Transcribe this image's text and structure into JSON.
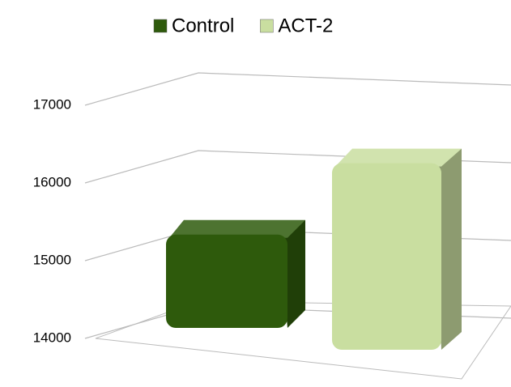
{
  "chart_data": {
    "type": "bar3d",
    "categories": [
      null
    ],
    "series": [
      {
        "name": "Control",
        "color": "#2e5a0c",
        "values": [
          15200
        ]
      },
      {
        "name": "ACT-2",
        "color": "#c9dea0",
        "values": [
          16400
        ]
      }
    ],
    "ylim": [
      14000,
      17000
    ],
    "yticks": [
      14000,
      15000,
      16000,
      17000
    ],
    "grid": true,
    "legend": "top"
  }
}
